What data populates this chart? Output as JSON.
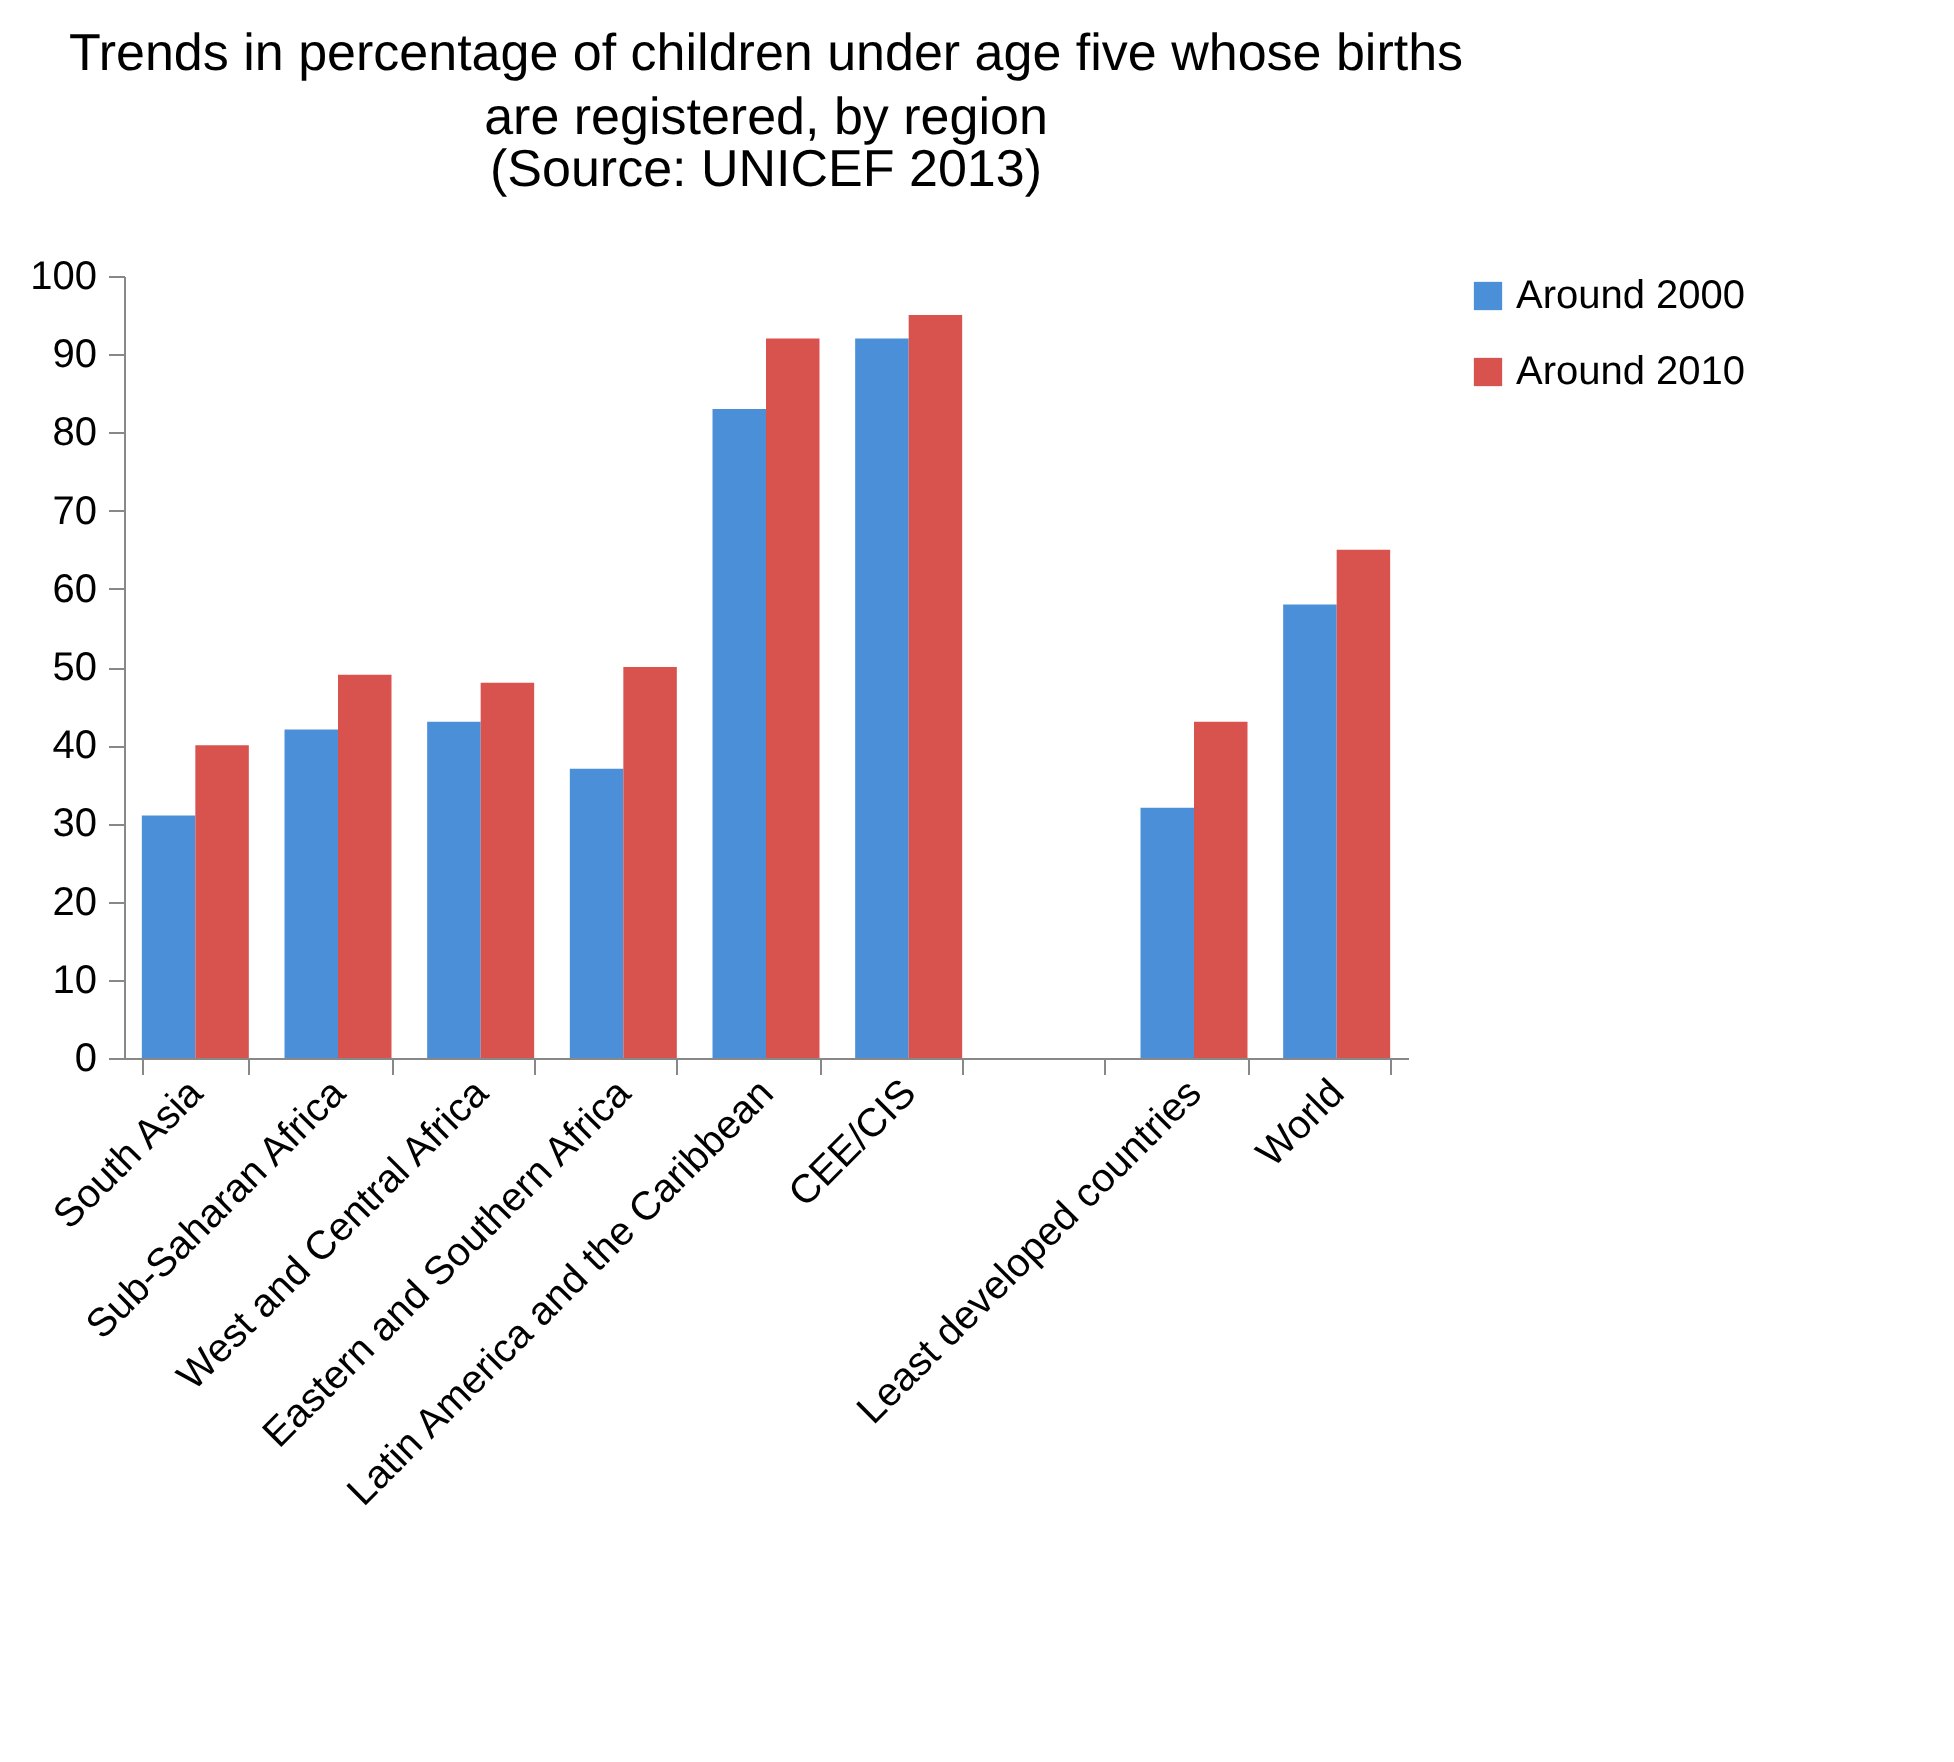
{
  "chart_data": {
    "type": "bar",
    "title": "Trends in percentage of children under age five whose births are registered, by region",
    "subtitle": "(Source: UNICEF 2013)",
    "categories": [
      "South Asia",
      "Sub-Saharan Africa",
      "West and Central Africa",
      "Eastern and Southern Africa",
      "Latin America and the Caribbean",
      "CEE/CIS",
      null,
      "Least developed countries",
      "World"
    ],
    "series": [
      {
        "name": "Around 2000",
        "color": "#4a8fd8",
        "values": [
          31,
          42,
          43,
          37,
          83,
          92,
          null,
          32,
          58
        ]
      },
      {
        "name": "Around 2010",
        "color": "#d9534e",
        "values": [
          40,
          49,
          48,
          50,
          92,
          95,
          null,
          43,
          65
        ]
      }
    ],
    "ylim": [
      0,
      100
    ],
    "yticks": [
      0,
      10,
      20,
      30,
      40,
      50,
      60,
      70,
      80,
      90,
      100
    ],
    "grid": false,
    "legend": "right"
  }
}
